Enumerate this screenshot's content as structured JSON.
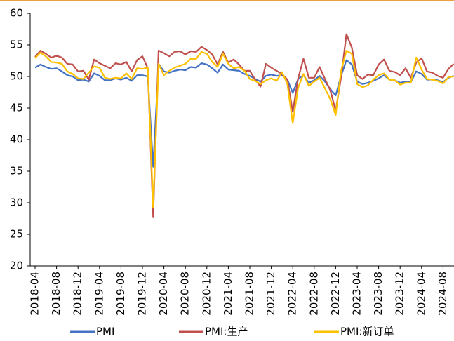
{
  "chart_data": {
    "type": "line",
    "categories": [
      "2018-04",
      null,
      null,
      null,
      "2018-08",
      null,
      null,
      null,
      "2018-12",
      null,
      null,
      null,
      "2019-04",
      null,
      null,
      null,
      "2019-08",
      null,
      null,
      null,
      "2019-12",
      null,
      null,
      null,
      "2020-04",
      null,
      null,
      null,
      "2020-08",
      null,
      null,
      null,
      "2020-12",
      null,
      null,
      null,
      "2021-04",
      null,
      null,
      null,
      "2021-08",
      null,
      null,
      null,
      "2021-12",
      null,
      null,
      null,
      "2022-04",
      null,
      null,
      null,
      "2022-08",
      null,
      null,
      null,
      "2022-12",
      null,
      null,
      null,
      "2023-04",
      null,
      null,
      null,
      "2023-08",
      null,
      null,
      null,
      "2023-12",
      null,
      null,
      null,
      "2024-04",
      null,
      null,
      null,
      "2024-08",
      null,
      null
    ],
    "series": [
      {
        "name": "PMI",
        "color": "#4472c4",
        "values": [
          51.4,
          51.9,
          51.5,
          51.2,
          51.3,
          50.8,
          50.2,
          50.0,
          49.4,
          49.5,
          49.2,
          50.5,
          50.1,
          49.4,
          49.4,
          49.7,
          49.5,
          49.8,
          49.3,
          50.2,
          50.2,
          50.0,
          35.7,
          52.0,
          50.8,
          50.6,
          50.9,
          51.1,
          51.0,
          51.5,
          51.4,
          52.1,
          51.9,
          51.3,
          50.6,
          51.9,
          51.1,
          51.0,
          50.9,
          50.4,
          50.1,
          49.6,
          49.2,
          50.1,
          50.3,
          50.1,
          50.2,
          49.5,
          47.4,
          49.6,
          50.2,
          49.0,
          49.4,
          50.1,
          49.2,
          48.0,
          47.0,
          50.1,
          52.6,
          51.9,
          49.2,
          48.8,
          49.0,
          49.3,
          49.7,
          50.2,
          49.5,
          49.4,
          49.0,
          49.2,
          49.1,
          50.8,
          50.4,
          49.5,
          49.5,
          49.4,
          49.1,
          49.8,
          50.1
        ]
      },
      {
        "name": "PMI:生产",
        "color": "#c0504d",
        "values": [
          53.1,
          54.1,
          53.6,
          53.0,
          53.3,
          53.0,
          52.0,
          51.9,
          50.8,
          50.9,
          49.5,
          52.7,
          52.1,
          51.7,
          51.3,
          52.1,
          51.9,
          52.3,
          50.8,
          52.6,
          53.2,
          51.3,
          27.8,
          54.1,
          53.7,
          53.2,
          53.9,
          54.0,
          53.5,
          54.0,
          53.9,
          54.7,
          54.2,
          53.5,
          51.9,
          53.9,
          52.2,
          52.7,
          51.9,
          50.9,
          50.9,
          49.5,
          48.4,
          52.0,
          51.4,
          50.9,
          50.4,
          49.5,
          44.4,
          49.7,
          52.8,
          49.8,
          49.8,
          51.5,
          49.6,
          47.8,
          44.6,
          49.8,
          56.7,
          54.6,
          50.2,
          49.6,
          50.3,
          50.2,
          51.9,
          52.7,
          50.9,
          50.7,
          50.2,
          51.3,
          49.8,
          52.2,
          52.9,
          50.8,
          50.6,
          50.1,
          49.8,
          51.2,
          52.0
        ]
      },
      {
        "name": "PMI:新订单",
        "color": "#ffc000",
        "values": [
          52.9,
          53.8,
          53.2,
          52.3,
          52.2,
          52.0,
          50.8,
          50.4,
          49.7,
          49.6,
          50.6,
          51.6,
          51.4,
          49.8,
          49.6,
          49.8,
          49.7,
          50.5,
          49.6,
          51.3,
          51.2,
          51.4,
          29.3,
          52.0,
          50.2,
          50.9,
          51.4,
          51.7,
          52.0,
          52.8,
          52.8,
          53.9,
          53.6,
          52.3,
          51.5,
          53.6,
          52.0,
          51.3,
          51.5,
          50.9,
          49.6,
          49.3,
          48.8,
          49.4,
          49.7,
          49.3,
          50.7,
          48.8,
          42.6,
          48.2,
          50.4,
          48.5,
          49.2,
          49.8,
          48.1,
          46.4,
          43.9,
          50.9,
          54.1,
          53.6,
          48.8,
          48.3,
          48.6,
          49.5,
          50.2,
          50.5,
          49.5,
          49.4,
          48.7,
          49.0,
          49.0,
          53.0,
          51.1,
          49.6,
          49.5,
          49.3,
          48.9,
          49.9,
          50.0
        ]
      }
    ],
    "ylim": [
      20,
      60
    ],
    "yticks": [
      20,
      25,
      30,
      35,
      40,
      45,
      50,
      55,
      60
    ],
    "grid": false,
    "legend": "bottom"
  }
}
